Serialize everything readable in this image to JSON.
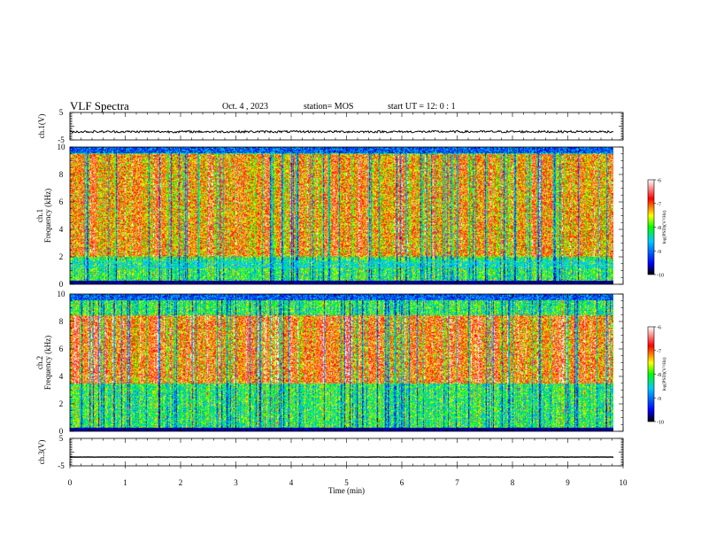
{
  "header": {
    "title": "VLF Spectra",
    "date": "Oct. 4  , 2023",
    "station": "station= MOS",
    "start_ut": "start  UT =   12: 0  : 1"
  },
  "chart_data": [
    {
      "type": "line",
      "name": "ch1-waveform",
      "ylabel": "ch.1(V)",
      "ylim": [
        -5,
        5
      ],
      "yticks": [
        "5",
        "-5"
      ],
      "x": [
        0,
        9.83
      ],
      "values": [
        -2,
        -2
      ],
      "noise_amplitude": 0.4,
      "xlim": [
        0,
        10
      ]
    },
    {
      "type": "heatmap",
      "name": "ch1-spectrogram",
      "ylabel": "ch.1\nFrequency  (kHz)",
      "ylim": [
        0,
        10
      ],
      "yticks": [
        "0",
        "2",
        "4",
        "6",
        "8",
        "10"
      ],
      "xlim": [
        0,
        10
      ],
      "data_extent_min": 9.83,
      "dominant_power_log10": -7.0,
      "strong_band_khz": [
        2,
        9.5
      ],
      "colorbar": {
        "label": "log(PSD)(V²/Hz)",
        "min": -10,
        "max": -6,
        "ticks": [
          "-6",
          "-7",
          "-8",
          "-9",
          "-10"
        ]
      }
    },
    {
      "type": "heatmap",
      "name": "ch2-spectrogram",
      "ylabel": "ch.2\nFrequency  (kHz)",
      "ylim": [
        0,
        10
      ],
      "yticks": [
        "0",
        "2",
        "4",
        "6",
        "8",
        "10"
      ],
      "xlim": [
        0,
        10
      ],
      "data_extent_min": 9.83,
      "dominant_power_log10": -6.8,
      "strong_band_khz": [
        3.5,
        8.5
      ],
      "colorbar": {
        "label": "log(PSD)(V²/Hz)",
        "min": -10,
        "max": -6,
        "ticks": [
          "-6",
          "-7",
          "-8",
          "-9",
          "-10"
        ]
      }
    },
    {
      "type": "line",
      "name": "ch3-waveform",
      "ylabel": "ch.3(V)",
      "ylim": [
        -5,
        5
      ],
      "yticks": [
        "5",
        "-5"
      ],
      "x": [
        0,
        9.83
      ],
      "values": [
        -1.8,
        -1.8
      ],
      "noise_amplitude": 0.05,
      "xlim": [
        0,
        10
      ],
      "xlabel": "Time  (min)",
      "xticks": [
        "0",
        "1",
        "2",
        "3",
        "4",
        "5",
        "6",
        "7",
        "8",
        "9",
        "10"
      ]
    }
  ],
  "colors": {
    "colormap": [
      "#000000",
      "#0000ff",
      "#00c8ff",
      "#00ff00",
      "#ffff00",
      "#ff0000",
      "#ffffff"
    ],
    "axis": "#000000"
  }
}
